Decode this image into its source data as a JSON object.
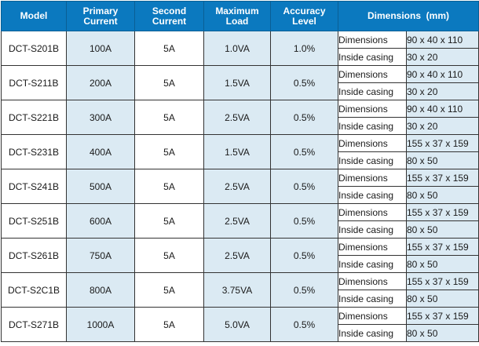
{
  "headers": {
    "model": "Model",
    "primary": [
      "Primary",
      "Current"
    ],
    "second": [
      "Second",
      "Current"
    ],
    "load": [
      "Maximum",
      "Load"
    ],
    "accuracy": [
      "Accuracy",
      "Level"
    ],
    "dimensions": "Dimensions  (mm)"
  },
  "rows": [
    {
      "model": "DCT-S201B",
      "primary": "100A",
      "second": "5A",
      "load": "1.0VA",
      "accuracy": "1.0%",
      "dim_label": "Dimensions",
      "dim_value": "90 x 40 x 110",
      "case_label": "Inside casing",
      "case_value": "30 x 20"
    },
    {
      "model": "DCT-S211B",
      "primary": "200A",
      "second": "5A",
      "load": "1.5VA",
      "accuracy": "0.5%",
      "dim_label": "Dimensions",
      "dim_value": "90 x 40 x 110",
      "case_label": "Inside casing",
      "case_value": "30 x 20"
    },
    {
      "model": "DCT-S221B",
      "primary": "300A",
      "second": "5A",
      "load": "2.5VA",
      "accuracy": "0.5%",
      "dim_label": "Dimensions",
      "dim_value": "90 x 40 x 110",
      "case_label": "Inside casing",
      "case_value": "30 x 20"
    },
    {
      "model": "DCT-S231B",
      "primary": "400A",
      "second": "5A",
      "load": "1.5VA",
      "accuracy": "0.5%",
      "dim_label": "Dimensions",
      "dim_value": "155 x 37 x 159",
      "case_label": "Inside casing",
      "case_value": "80 x 50"
    },
    {
      "model": "DCT-S241B",
      "primary": "500A",
      "second": "5A",
      "load": "2.5VA",
      "accuracy": "0.5%",
      "dim_label": "Dimensions",
      "dim_value": "155 x 37 x 159",
      "case_label": "Inside casing",
      "case_value": "80 x 50"
    },
    {
      "model": "DCT-S251B",
      "primary": "600A",
      "second": "5A",
      "load": "2.5VA",
      "accuracy": "0.5%",
      "dim_label": "Dimensions",
      "dim_value": "155 x 37 x 159",
      "case_label": "Inside casing",
      "case_value": "80 x 50"
    },
    {
      "model": "DCT-S261B",
      "primary": "750A",
      "second": "5A",
      "load": "2.5VA",
      "accuracy": "0.5%",
      "dim_label": "Dimensions",
      "dim_value": "155 x 37 x 159",
      "case_label": "Inside casing",
      "case_value": "80 x 50"
    },
    {
      "model": "DCT-S2C1B",
      "primary": "800A",
      "second": "5A",
      "load": "3.75VA",
      "accuracy": "0.5%",
      "dim_label": "Dimensions",
      "dim_value": "155 x 37 x 159",
      "case_label": "Inside casing",
      "case_value": "80 x 50"
    },
    {
      "model": "DCT-S271B",
      "primary": "1000A",
      "second": "5A",
      "load": "5.0VA",
      "accuracy": "0.5%",
      "dim_label": "Dimensions",
      "dim_value": "155 x 37 x 159",
      "case_label": "Inside casing",
      "case_value": "80 x 50"
    }
  ]
}
